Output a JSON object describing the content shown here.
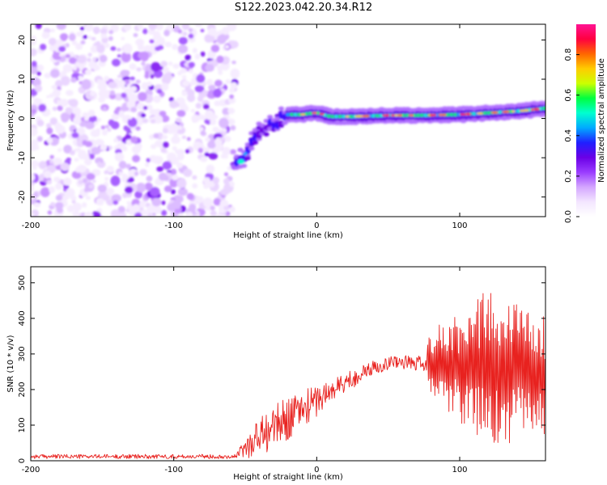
{
  "figure": {
    "title": "S122.2023.042.20.34.R12"
  },
  "chart_data": [
    {
      "type": "heatmap",
      "xlabel": "Height of straight line (km)",
      "ylabel": "Frequency (Hz)",
      "xlim": [
        -200,
        160
      ],
      "ylim": [
        -25,
        24
      ],
      "xticks": [
        -200,
        -100,
        0,
        100
      ],
      "yticks": [
        -20,
        -10,
        0,
        10,
        20
      ],
      "colorbar": {
        "label": "Normalized spectral amplitude",
        "range": [
          0.0,
          0.95
        ],
        "ticks": [
          0.0,
          0.2,
          0.4,
          0.6,
          0.8
        ],
        "colormap": [
          "#ffffff",
          "#f3e6ff",
          "#d4a6ff",
          "#9a3cff",
          "#6a00e6",
          "#2020ff",
          "#00aaff",
          "#00ffd0",
          "#00ff40",
          "#ccff00",
          "#ffcc00",
          "#ff6600",
          "#ff0040",
          "#ff1493"
        ]
      },
      "noise_region": {
        "x": [
          -200,
          -57
        ],
        "y": [
          -25,
          24
        ]
      },
      "ridge": [
        {
          "x": -57,
          "y": -11
        },
        {
          "x": -50,
          "y": -10
        },
        {
          "x": -44,
          "y": -5
        },
        {
          "x": -40,
          "y": -3
        },
        {
          "x": -34,
          "y": -2
        },
        {
          "x": -28,
          "y": -1
        },
        {
          "x": -20,
          "y": 1
        },
        {
          "x": -10,
          "y": 1
        },
        {
          "x": 0,
          "y": 1.5
        },
        {
          "x": 10,
          "y": 0.5
        },
        {
          "x": 25,
          "y": 0.5
        },
        {
          "x": 50,
          "y": 0.8
        },
        {
          "x": 75,
          "y": 0.8
        },
        {
          "x": 100,
          "y": 1
        },
        {
          "x": 125,
          "y": 1.5
        },
        {
          "x": 145,
          "y": 2
        },
        {
          "x": 160,
          "y": 2.6
        }
      ]
    },
    {
      "type": "line",
      "xlabel": "Height of straight line (km)",
      "ylabel": "SNR (10 * v/v)",
      "xlim": [
        -200,
        160
      ],
      "ylim": [
        0,
        545
      ],
      "xticks": [
        -200,
        -100,
        0,
        100
      ],
      "yticks": [
        0,
        100,
        200,
        300,
        400,
        500
      ],
      "color": "#e8221f",
      "series": [
        {
          "envelope": [
            {
              "x": -200,
              "mid": 12,
              "amp": 6
            },
            {
              "x": -57,
              "mid": 12,
              "amp": 6
            },
            {
              "x": -40,
              "mid": 70,
              "amp": 60
            },
            {
              "x": -20,
              "mid": 120,
              "amp": 60
            },
            {
              "x": 0,
              "mid": 170,
              "amp": 45
            },
            {
              "x": 20,
              "mid": 220,
              "amp": 30
            },
            {
              "x": 40,
              "mid": 262,
              "amp": 20
            },
            {
              "x": 55,
              "mid": 280,
              "amp": 18
            },
            {
              "x": 75,
              "mid": 270,
              "amp": 25
            },
            {
              "x": 80,
              "mid": 280,
              "amp": 80
            },
            {
              "x": 100,
              "mid": 260,
              "amp": 140
            },
            {
              "x": 125,
              "mid": 270,
              "amp": 210
            },
            {
              "x": 145,
              "mid": 250,
              "amp": 180
            },
            {
              "x": 160,
              "mid": 240,
              "amp": 150
            }
          ]
        }
      ]
    }
  ]
}
